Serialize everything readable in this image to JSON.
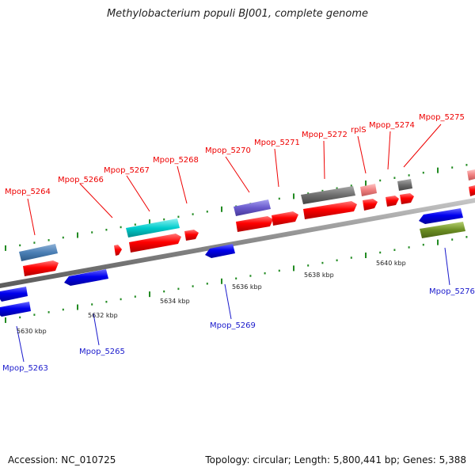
{
  "title": "Methylobacterium populi BJ001, complete genome",
  "footer": {
    "accession": "Accession: NC_010725",
    "topology": "Topology: circular; Length: 5,800,441 bp; Genes: 5,388"
  },
  "colors": {
    "forward_cds": "#ff0000",
    "reverse_cds": "#0000ee",
    "forward_label": "#ee0000",
    "reverse_label": "#1a1acc",
    "backbone": "#888888",
    "tick": "#228b22"
  },
  "scale_labels": [
    "5630 kbp",
    "5632 kbp",
    "5634 kbp",
    "5636 kbp",
    "5638 kbp",
    "5640 kbp"
  ],
  "genes_forward": [
    "Mpop_5264",
    "Mpop_5266",
    "Mpop_5267",
    "Mpop_5268",
    "Mpop_5270",
    "Mpop_5271",
    "Mpop_5272",
    "rplS",
    "Mpop_5274",
    "Mpop_5275"
  ],
  "genes_reverse": [
    "Mpop_5263",
    "Mpop_5265",
    "Mpop_5269",
    "Mpop_5276"
  ]
}
